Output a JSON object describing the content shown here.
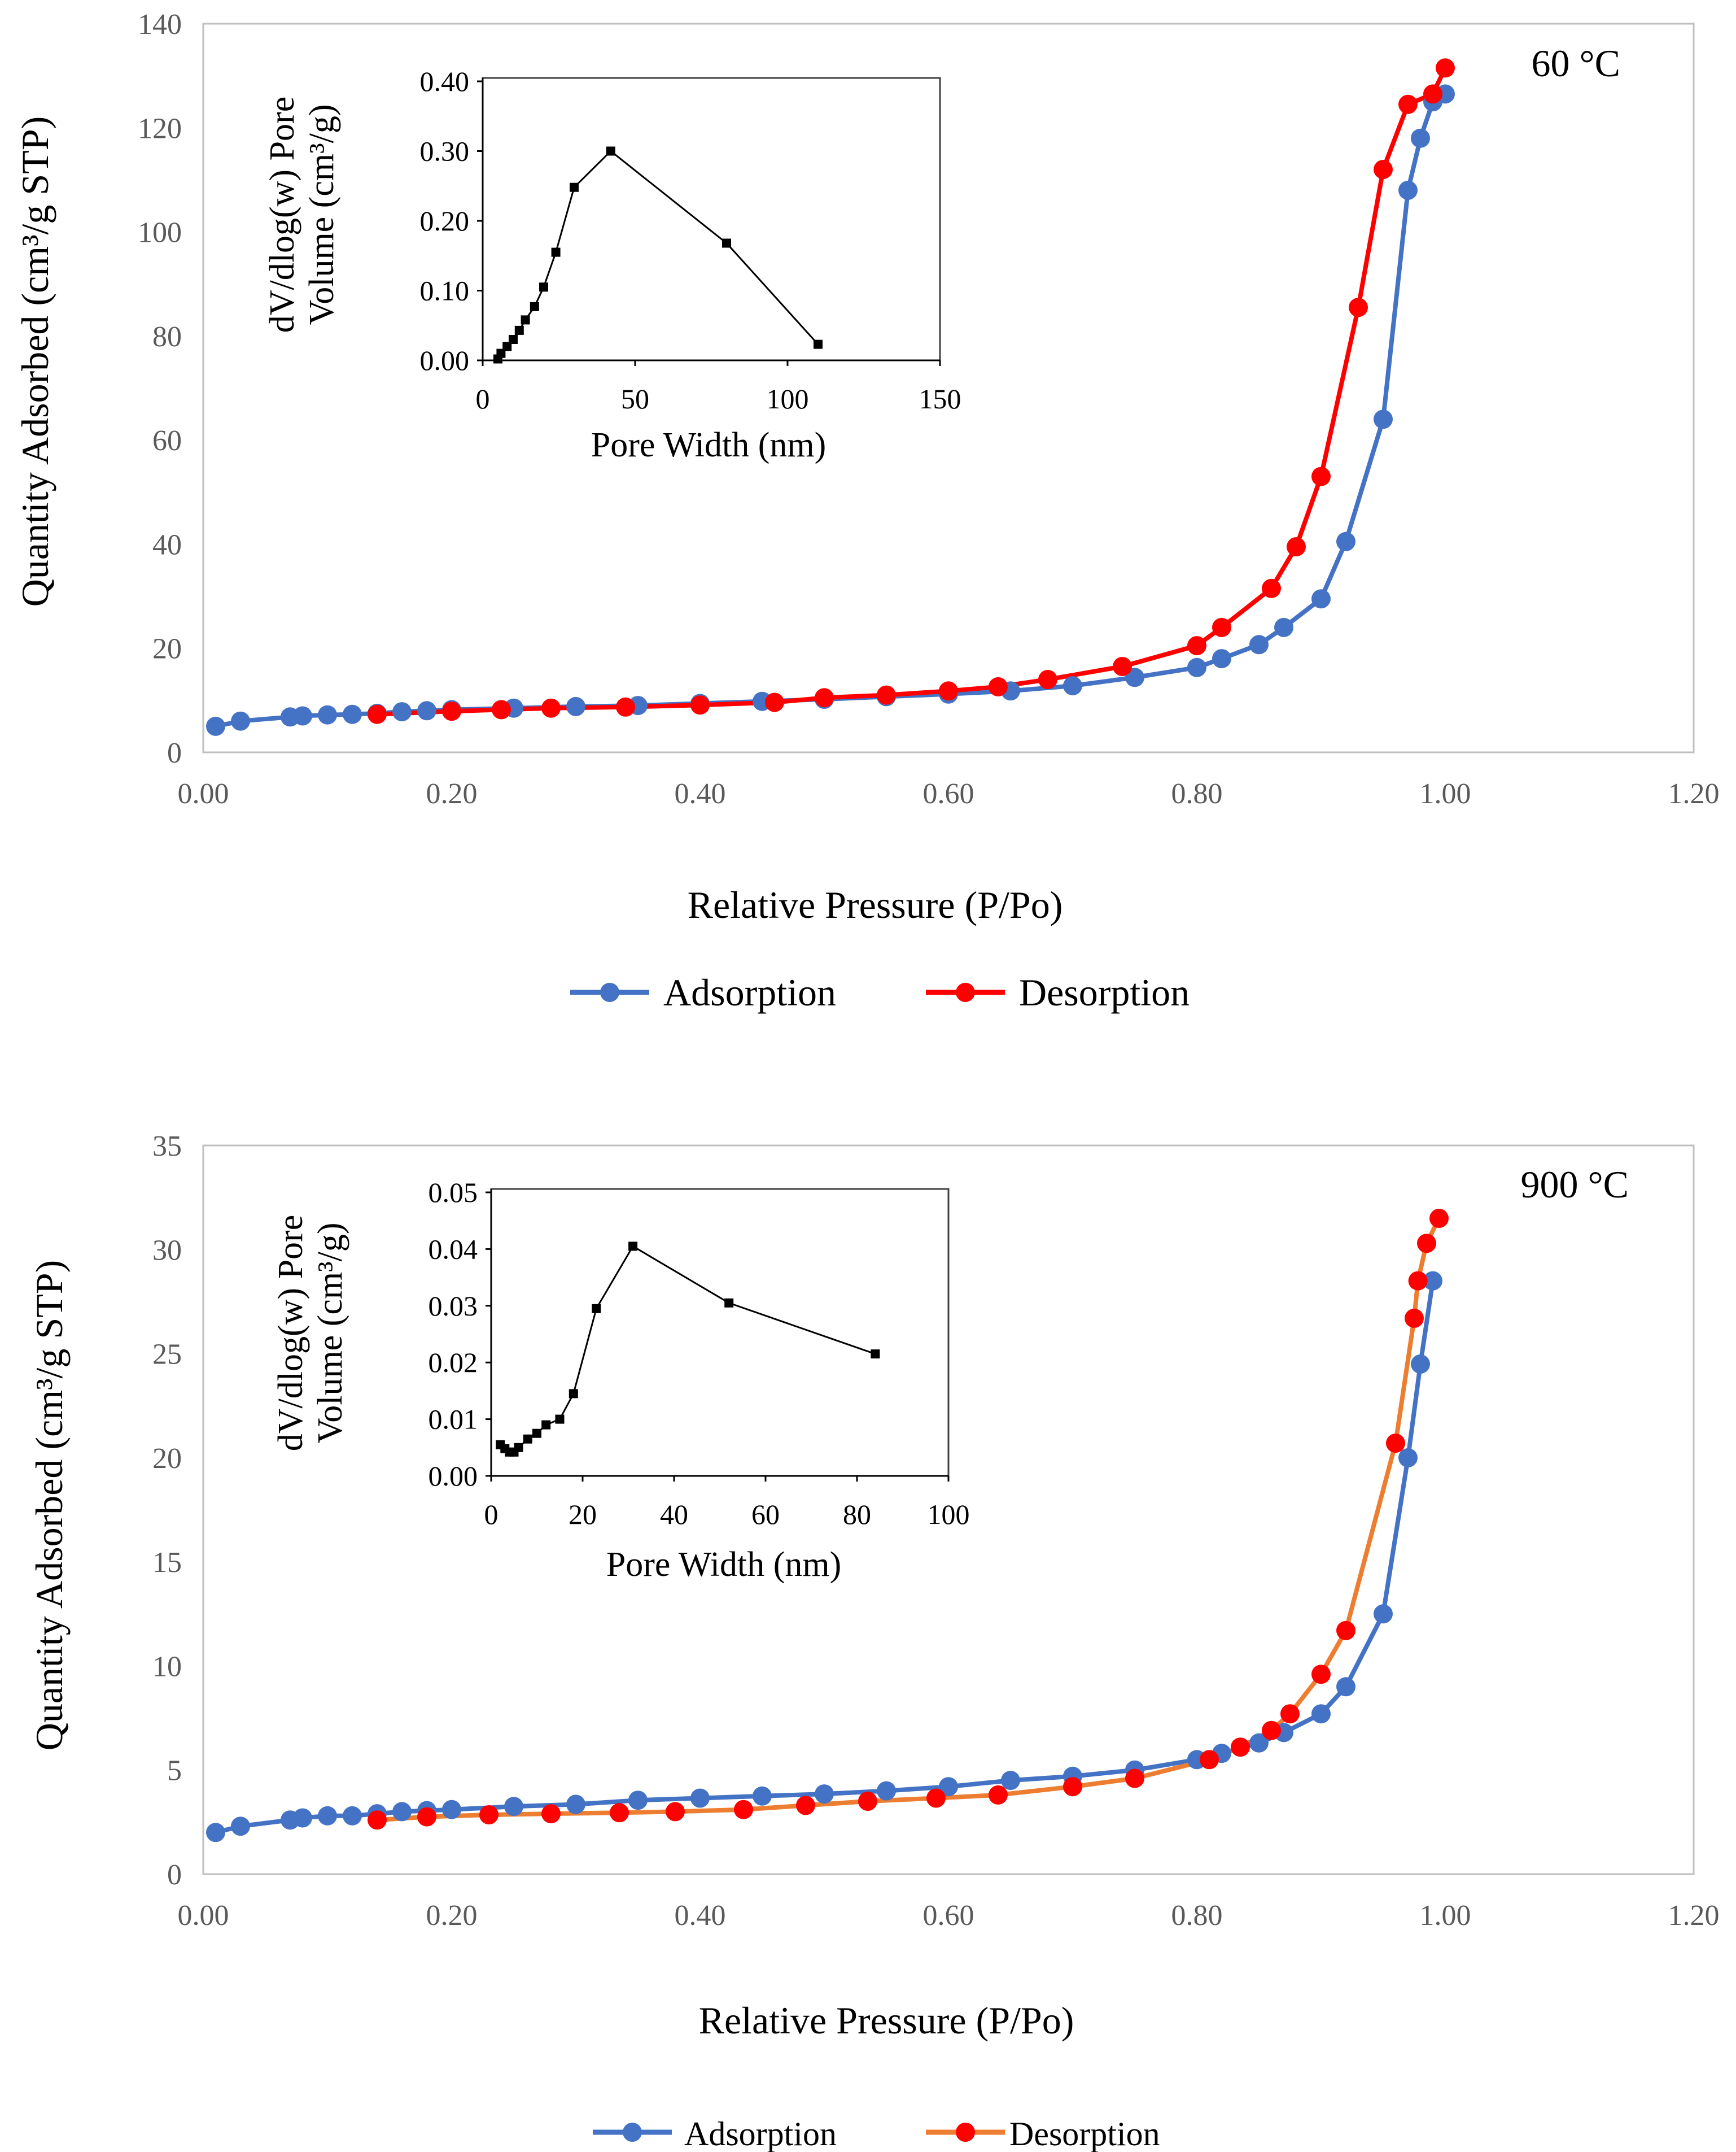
{
  "chart_data": [
    {
      "type": "line",
      "id": "top",
      "title": "",
      "annotation": "60 °C",
      "xlabel": "Relative Pressure (P/Po)",
      "ylabel": "Quantity Adsorbed (cm³/g STP)",
      "xlim": [
        0,
        1.2
      ],
      "ylim": [
        0,
        140
      ],
      "xticks": [
        "0.00",
        "0.20",
        "0.40",
        "0.60",
        "0.80",
        "1.00",
        "1.20"
      ],
      "yticks": [
        "0",
        "20",
        "40",
        "60",
        "80",
        "100",
        "120",
        "140"
      ],
      "legend": "bottom",
      "series": [
        {
          "name": "Adsorption",
          "color": "#4472C4",
          "marker_color": "#4472C4",
          "x": [
            0.01,
            0.03,
            0.07,
            0.08,
            0.1,
            0.12,
            0.14,
            0.16,
            0.18,
            0.2,
            0.25,
            0.3,
            0.35,
            0.4,
            0.45,
            0.5,
            0.55,
            0.6,
            0.65,
            0.7,
            0.75,
            0.8,
            0.82,
            0.85,
            0.87,
            0.9,
            0.92,
            0.95,
            0.97,
            0.98,
            0.99,
            1.0
          ],
          "y": [
            5,
            6,
            6.8,
            7,
            7.2,
            7.3,
            7.5,
            7.8,
            8,
            8.2,
            8.5,
            8.8,
            9,
            9.4,
            9.8,
            10.2,
            10.7,
            11.2,
            11.8,
            12.8,
            14.4,
            16.3,
            18,
            20.7,
            24,
            29.5,
            40.5,
            64,
            108,
            118,
            125,
            126.5
          ]
        },
        {
          "name": "Desorption",
          "color": "#FF0000",
          "marker_color": "#FF0000",
          "x": [
            1.0,
            0.99,
            0.97,
            0.95,
            0.93,
            0.9,
            0.88,
            0.86,
            0.82,
            0.8,
            0.74,
            0.68,
            0.64,
            0.6,
            0.55,
            0.5,
            0.46,
            0.4,
            0.34,
            0.28,
            0.24,
            0.2,
            0.14
          ],
          "y": [
            131.5,
            126.5,
            124.5,
            112,
            85.5,
            53,
            39.5,
            31.5,
            24,
            20.5,
            16.5,
            14,
            12.6,
            11.8,
            11,
            10.5,
            9.6,
            9.1,
            8.7,
            8.5,
            8.2,
            7.9,
            7.3
          ]
        }
      ],
      "inset": {
        "type": "line",
        "xlabel": "Pore Width (nm)",
        "ylabel_line1": "dV/dlog(w) Pore",
        "ylabel_line2": "Volume (cm³/g)",
        "xlim": [
          0,
          150
        ],
        "ylim": [
          0,
          0.4
        ],
        "xticks": [
          "0",
          "50",
          "100",
          "150"
        ],
        "yticks": [
          "0.00",
          "0.10",
          "0.20",
          "0.30",
          "0.40"
        ],
        "x": [
          5,
          6,
          8,
          10,
          12,
          14,
          17,
          20,
          24,
          30,
          42,
          80,
          110
        ],
        "y": [
          0.002,
          0.01,
          0.02,
          0.03,
          0.043,
          0.058,
          0.077,
          0.105,
          0.155,
          0.248,
          0.3,
          0.168,
          0.023
        ]
      }
    },
    {
      "type": "line",
      "id": "bottom",
      "title": "",
      "annotation": "900 °C",
      "xlabel": "Relative Pressure (P/Po)",
      "ylabel": "Quantity Adsorbed (cm³/g STP)",
      "xlim": [
        0,
        1.2
      ],
      "ylim": [
        0,
        35
      ],
      "xticks": [
        "0.00",
        "0.20",
        "0.40",
        "0.60",
        "0.80",
        "1.00",
        "1.20"
      ],
      "yticks": [
        "0",
        "5",
        "10",
        "15",
        "20",
        "25",
        "30",
        "35"
      ],
      "legend": "bottom",
      "series": [
        {
          "name": "Adsorption",
          "color": "#4472C4",
          "marker_color": "#4472C4",
          "x": [
            0.01,
            0.03,
            0.07,
            0.08,
            0.1,
            0.12,
            0.14,
            0.16,
            0.18,
            0.2,
            0.25,
            0.3,
            0.35,
            0.4,
            0.45,
            0.5,
            0.55,
            0.6,
            0.65,
            0.7,
            0.75,
            0.8,
            0.82,
            0.85,
            0.87,
            0.9,
            0.92,
            0.95,
            0.97,
            0.98,
            0.99
          ],
          "y": [
            2,
            2.3,
            2.6,
            2.7,
            2.8,
            2.8,
            2.9,
            3,
            3.05,
            3.1,
            3.25,
            3.35,
            3.55,
            3.65,
            3.75,
            3.85,
            4,
            4.2,
            4.5,
            4.7,
            5,
            5.5,
            5.8,
            6.3,
            6.8,
            7.7,
            9,
            12.5,
            20,
            24.5,
            28.5
          ]
        },
        {
          "name": "Desorption",
          "color": "#ED7D31",
          "marker_color": "#FF0000",
          "x": [
            0.995,
            0.985,
            0.978,
            0.975,
            0.96,
            0.92,
            0.9,
            0.875,
            0.86,
            0.835,
            0.81,
            0.75,
            0.7,
            0.64,
            0.59,
            0.535,
            0.485,
            0.435,
            0.38,
            0.335,
            0.28,
            0.23,
            0.18,
            0.14
          ],
          "y": [
            31.5,
            30.3,
            28.5,
            26.7,
            20.7,
            11.7,
            9.6,
            7.7,
            6.9,
            6.1,
            5.5,
            4.6,
            4.2,
            3.8,
            3.65,
            3.5,
            3.3,
            3.1,
            3,
            2.95,
            2.9,
            2.85,
            2.75,
            2.6
          ]
        }
      ],
      "inset": {
        "type": "line",
        "xlabel": "Pore Width (nm)",
        "ylabel_line1": "dV/dlog(w) Pore",
        "ylabel_line2": "Volume (cm³/g)",
        "xlim": [
          0,
          100
        ],
        "ylim": [
          0,
          0.05
        ],
        "xticks": [
          "0",
          "20",
          "40",
          "60",
          "80",
          "100"
        ],
        "yticks": [
          "0.00",
          "0.01",
          "0.02",
          "0.03",
          "0.04",
          "0.05"
        ],
        "x": [
          2,
          3,
          4,
          5,
          6,
          8,
          10,
          12,
          15,
          18,
          23,
          31,
          52,
          84
        ],
        "y": [
          0.0055,
          0.0048,
          0.0042,
          0.0042,
          0.005,
          0.0065,
          0.0075,
          0.009,
          0.01,
          0.0145,
          0.0295,
          0.0405,
          0.0305,
          0.0215
        ]
      }
    }
  ]
}
